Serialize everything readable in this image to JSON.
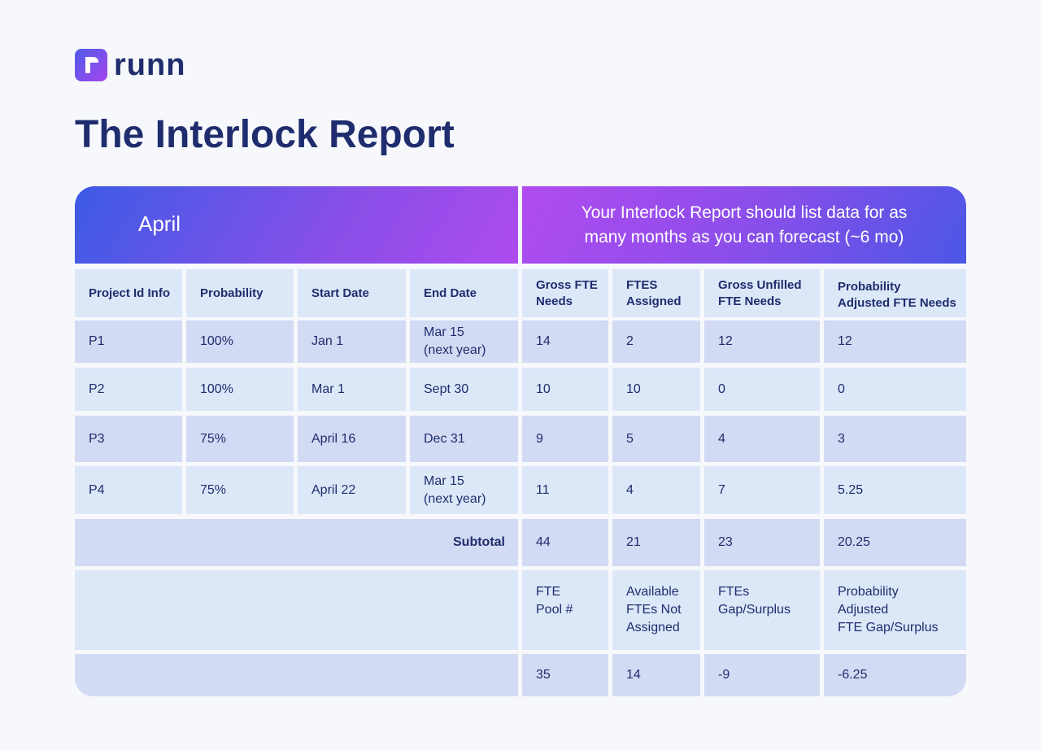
{
  "brand": {
    "name": "runn",
    "mark_icon": "runn-logo-icon"
  },
  "title": "The Interlock Report",
  "band": {
    "month": "April",
    "note_line1": "Your Interlock Report should list data for as",
    "note_line2": "many months as you can forecast (~6 mo)"
  },
  "headers": {
    "project": "Project Id Info",
    "probability": "Probability",
    "start": "Start Date",
    "end": "End Date",
    "gross_l1": "Gross FTE",
    "gross_l2": "Needs",
    "assigned_l1": "FTES",
    "assigned_l2": "Assigned",
    "unfilled_l1": "Gross Unfilled",
    "unfilled_l2": "FTE Needs",
    "adjusted_l1": "Probability",
    "adjusted_l2": "Adjusted FTE Needs"
  },
  "rows": [
    {
      "project": "P1",
      "probability": "100%",
      "start": "Jan 1",
      "end_l1": "Mar 15",
      "end_l2": "(next year)",
      "gross": "14",
      "assigned": "2",
      "unfilled": "12",
      "adjusted": "12"
    },
    {
      "project": "P2",
      "probability": "100%",
      "start": "Mar 1",
      "end_l1": "Sept 30",
      "end_l2": "",
      "gross": "10",
      "assigned": "10",
      "unfilled": "0",
      "adjusted": "0"
    },
    {
      "project": "P3",
      "probability": "75%",
      "start": "April 16",
      "end_l1": "Dec 31",
      "end_l2": "",
      "gross": "9",
      "assigned": "5",
      "unfilled": "4",
      "adjusted": "3"
    },
    {
      "project": "P4",
      "probability": "75%",
      "start": "April 22",
      "end_l1": "Mar 15",
      "end_l2": "(next year)",
      "gross": "11",
      "assigned": "4",
      "unfilled": "7",
      "adjusted": "5.25"
    }
  ],
  "subtotal": {
    "label": "Subtotal",
    "gross": "44",
    "assigned": "21",
    "unfilled": "23",
    "adjusted": "20.25"
  },
  "pool_labels": {
    "pool_l1": "FTE",
    "pool_l2": "Pool #",
    "available_l1": "Available",
    "available_l2": "FTEs Not",
    "available_l3": "Assigned",
    "gap_l1": "FTEs",
    "gap_l2": "Gap/Surplus",
    "adj_gap_l1": "Probability",
    "adj_gap_l2": "Adjusted",
    "adj_gap_l3": "FTE Gap/Surplus"
  },
  "pool_values": {
    "pool": "35",
    "available": "14",
    "gap": "-9",
    "adj_gap": "-6.25"
  },
  "colors": {
    "text": "#1f2d6e",
    "cell_light": "#dce8f8",
    "cell_dark": "#d3daf3",
    "accent_blue": "#3c5be6",
    "accent_purple": "#ad4bf0"
  }
}
